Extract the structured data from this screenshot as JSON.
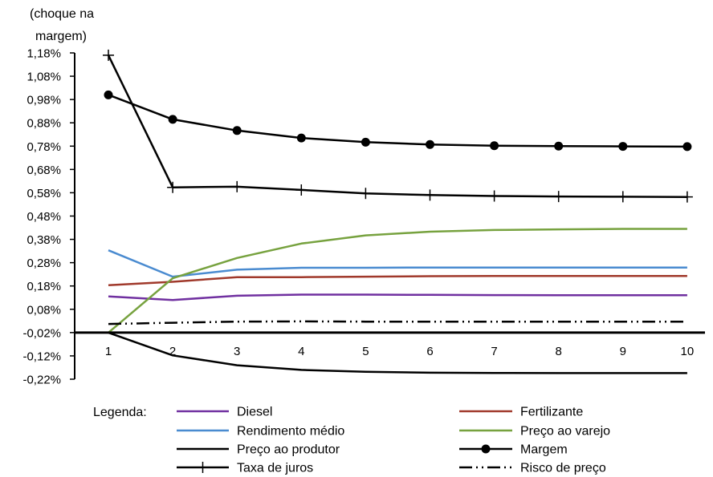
{
  "chart_data": {
    "type": "line",
    "title": "",
    "ylabel": "(choque na margem)",
    "ylabel_lines": [
      "(choque na",
      "margem)"
    ],
    "xlabel": "",
    "x": [
      1,
      2,
      3,
      4,
      5,
      6,
      7,
      8,
      9,
      10
    ],
    "ylim": [
      -0.22,
      1.18
    ],
    "y_ticks": [
      1.18,
      1.08,
      0.98,
      0.88,
      0.78,
      0.68,
      0.58,
      0.48,
      0.38,
      0.28,
      0.18,
      0.08,
      -0.02,
      -0.12,
      -0.22
    ],
    "y_tick_labels": [
      "1,18%",
      "1,08%",
      "0,98%",
      "0,88%",
      "0,78%",
      "0,68%",
      "0,58%",
      "0,48%",
      "0,38%",
      "0,28%",
      "0,18%",
      "0,08%",
      "-0,02%",
      "-0,12%",
      "-0,22%"
    ],
    "x_tick_labels": [
      "1",
      "2",
      "3",
      "4",
      "5",
      "6",
      "7",
      "8",
      "9",
      "10"
    ],
    "x_axis_at": -0.02,
    "grid": false,
    "legend_title": "Legenda:",
    "legend_position": "bottom",
    "series": [
      {
        "name": "Diesel",
        "color": "#7030A0",
        "style": "solid",
        "marker": "none",
        "values": [
          0.135,
          0.12,
          0.138,
          0.143,
          0.143,
          0.142,
          0.141,
          0.14,
          0.14,
          0.14
        ]
      },
      {
        "name": "Fertilizante",
        "color": "#A0392B",
        "style": "solid",
        "marker": "none",
        "values": [
          0.183,
          0.198,
          0.218,
          0.218,
          0.22,
          0.222,
          0.223,
          0.223,
          0.223,
          0.223
        ]
      },
      {
        "name": "Rendimento médio",
        "color": "#4A8BD0",
        "style": "solid",
        "marker": "none",
        "values": [
          0.333,
          0.22,
          0.25,
          0.258,
          0.258,
          0.259,
          0.259,
          0.259,
          0.259,
          0.259
        ]
      },
      {
        "name": "Preço ao varejo",
        "color": "#77A23F",
        "style": "solid",
        "marker": "none",
        "values": [
          -0.02,
          0.213,
          0.3,
          0.362,
          0.397,
          0.413,
          0.42,
          0.423,
          0.425,
          0.425
        ]
      },
      {
        "name": "Preço ao produtor",
        "color": "#000000",
        "style": "solid",
        "marker": "none",
        "values": [
          -0.02,
          -0.118,
          -0.16,
          -0.18,
          -0.188,
          -0.192,
          -0.193,
          -0.194,
          -0.194,
          -0.194
        ]
      },
      {
        "name": "Margem",
        "color": "#000000",
        "style": "solid",
        "marker": "circle",
        "values": [
          1.0,
          0.895,
          0.847,
          0.815,
          0.797,
          0.787,
          0.782,
          0.78,
          0.779,
          0.778
        ]
      },
      {
        "name": "Taxa de juros",
        "color": "#000000",
        "style": "solid",
        "marker": "plus",
        "values": [
          1.17,
          0.603,
          0.606,
          0.592,
          0.577,
          0.57,
          0.566,
          0.564,
          0.563,
          0.562
        ]
      },
      {
        "name": "Risco de preço",
        "color": "#000000",
        "style": "dash-dot-dot",
        "marker": "none",
        "values": [
          0.017,
          0.022,
          0.027,
          0.028,
          0.027,
          0.027,
          0.027,
          0.027,
          0.027,
          0.027
        ]
      }
    ]
  }
}
